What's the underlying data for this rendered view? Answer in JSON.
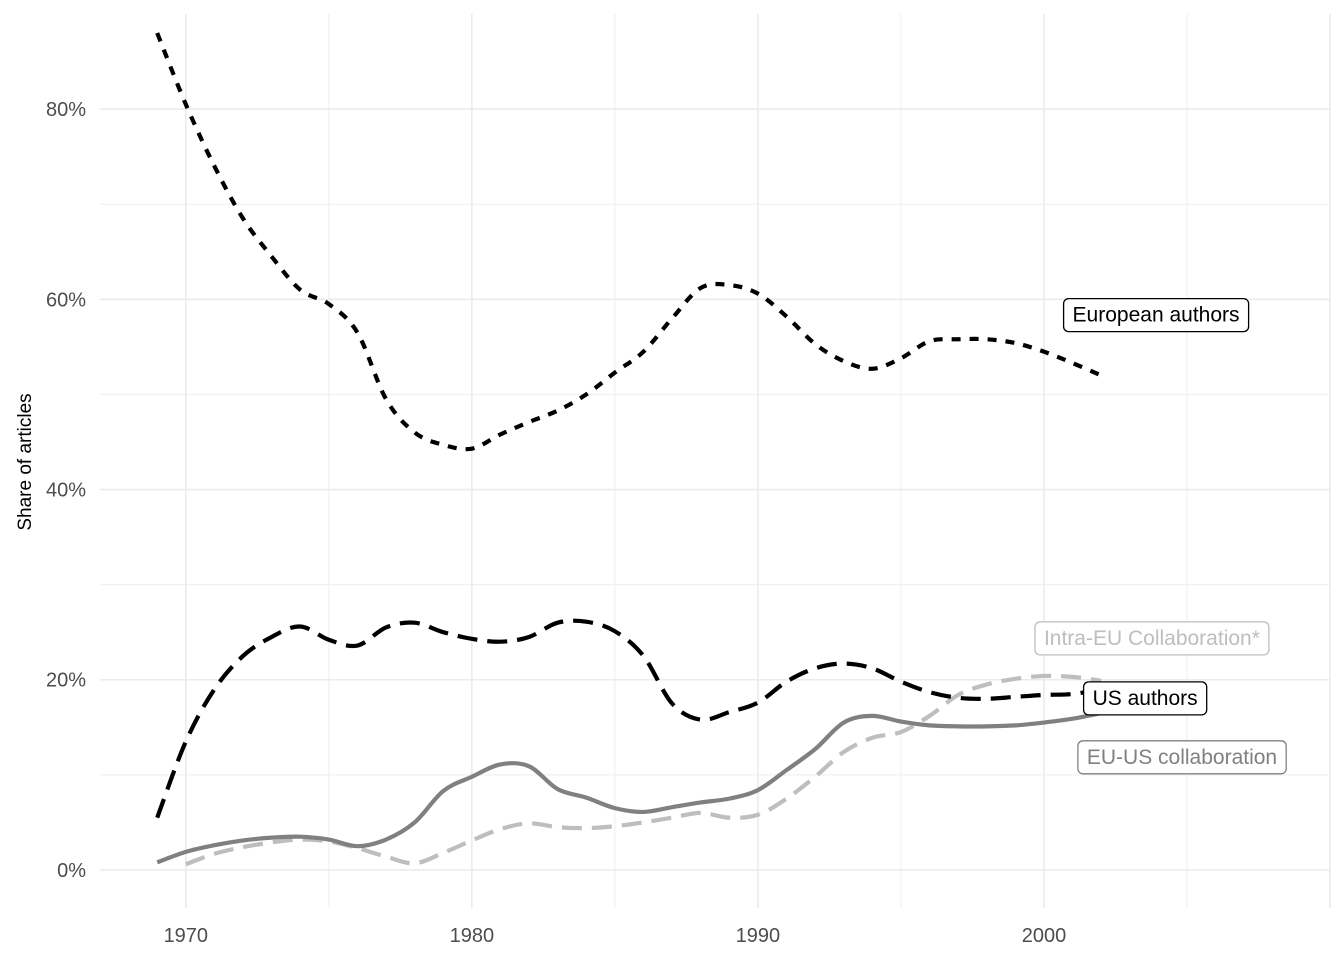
{
  "chart_data": {
    "type": "line",
    "title": "",
    "xlabel": "",
    "ylabel": "Share of articles",
    "xlim": [
      1967,
      2010
    ],
    "ylim": [
      -4,
      90
    ],
    "x_ticks": [
      1970,
      1980,
      1990,
      2000
    ],
    "y_ticks": [
      0,
      20,
      40,
      60,
      80
    ],
    "y_tick_labels": [
      "0%",
      "20%",
      "40%",
      "60%",
      "80%"
    ],
    "grid": true,
    "legend": "direct labels at line ends",
    "series": [
      {
        "name": "European authors",
        "color": "#000000",
        "dash": "dotted",
        "x": [
          1969,
          1970,
          1971,
          1972,
          1973,
          1974,
          1975,
          1976,
          1977,
          1978,
          1979,
          1980,
          1981,
          1982,
          1983,
          1984,
          1985,
          1986,
          1987,
          1988,
          1989,
          1990,
          1991,
          1992,
          1993,
          1994,
          1995,
          1996,
          1997,
          1998,
          1999,
          2000,
          2001,
          2002
        ],
        "y": [
          88,
          80.5,
          74,
          68.5,
          64.5,
          61,
          59.5,
          56.5,
          49.5,
          46,
          44.7,
          44.3,
          45.8,
          47.1,
          48.3,
          50,
          52.3,
          54.5,
          58,
          61.2,
          61.5,
          60.6,
          58.2,
          55.3,
          53.5,
          52.7,
          53.8,
          55.6,
          55.8,
          55.8,
          55.4,
          54.5,
          53.3,
          52
        ]
      },
      {
        "name": "US authors",
        "color": "#000000",
        "dash": "dashed",
        "x": [
          1969,
          1970,
          1971,
          1972,
          1973,
          1974,
          1975,
          1976,
          1977,
          1978,
          1979,
          1980,
          1981,
          1982,
          1983,
          1984,
          1985,
          1986,
          1987,
          1988,
          1989,
          1990,
          1991,
          1992,
          1993,
          1994,
          1995,
          1996,
          1997,
          1998,
          1999,
          2000,
          2001,
          2002
        ],
        "y": [
          5.5,
          13.5,
          19,
          22.5,
          24.5,
          25.6,
          24.2,
          23.6,
          25.5,
          26,
          25,
          24.3,
          24,
          24.5,
          26,
          26.1,
          25.1,
          22.5,
          17.5,
          15.8,
          16.6,
          17.6,
          19.8,
          21.2,
          21.7,
          21.2,
          19.8,
          18.7,
          18.1,
          18,
          18.2,
          18.4,
          18.5,
          19
        ]
      },
      {
        "name": "EU-US collaboration",
        "color": "#808080",
        "dash": "solid",
        "x": [
          1969,
          1970,
          1971,
          1972,
          1973,
          1974,
          1975,
          1976,
          1977,
          1978,
          1979,
          1980,
          1981,
          1982,
          1983,
          1984,
          1985,
          1986,
          1987,
          1988,
          1989,
          1990,
          1991,
          1992,
          1993,
          1994,
          1995,
          1996,
          1997,
          1998,
          1999,
          2000,
          2001,
          2002
        ],
        "y": [
          0.8,
          1.9,
          2.6,
          3.1,
          3.4,
          3.5,
          3.2,
          2.5,
          3.2,
          5,
          8.3,
          9.8,
          11.1,
          10.9,
          8.5,
          7.6,
          6.5,
          6.1,
          6.6,
          7.1,
          7.5,
          8.4,
          10.5,
          12.7,
          15.5,
          16.2,
          15.6,
          15.2,
          15.1,
          15.1,
          15.2,
          15.5,
          15.9,
          16.5
        ]
      },
      {
        "name": "Intra-EU Collaboration*",
        "color": "#bebebe",
        "dash": "dashed",
        "x": [
          1970,
          1971,
          1972,
          1973,
          1974,
          1975,
          1976,
          1977,
          1978,
          1979,
          1980,
          1981,
          1982,
          1983,
          1984,
          1985,
          1986,
          1987,
          1988,
          1989,
          1990,
          1991,
          1992,
          1993,
          1994,
          1995,
          1996,
          1997,
          1998,
          1999,
          2000,
          2001,
          2002
        ],
        "y": [
          0.6,
          1.7,
          2.4,
          2.9,
          3.2,
          3,
          2.3,
          1.4,
          0.7,
          1.8,
          3.1,
          4.3,
          4.9,
          4.5,
          4.4,
          4.6,
          5,
          5.5,
          6,
          5.5,
          5.8,
          7.5,
          9.8,
          12.4,
          13.9,
          14.5,
          16.2,
          18.4,
          19.5,
          20.1,
          20.4,
          20.3,
          19.9
        ]
      }
    ],
    "labels": [
      {
        "text": "European authors",
        "color": "#000000",
        "x": 2001,
        "y": 58.5
      },
      {
        "text": "Intra-EU Collaboration*",
        "color": "#bebebe",
        "x": 2000,
        "y": 24.5
      },
      {
        "text": "US authors",
        "color": "#000000",
        "x": 2001.7,
        "y": 18.2
      },
      {
        "text": "EU-US collaboration",
        "color": "#808080",
        "x": 2001.5,
        "y": 12
      }
    ]
  }
}
